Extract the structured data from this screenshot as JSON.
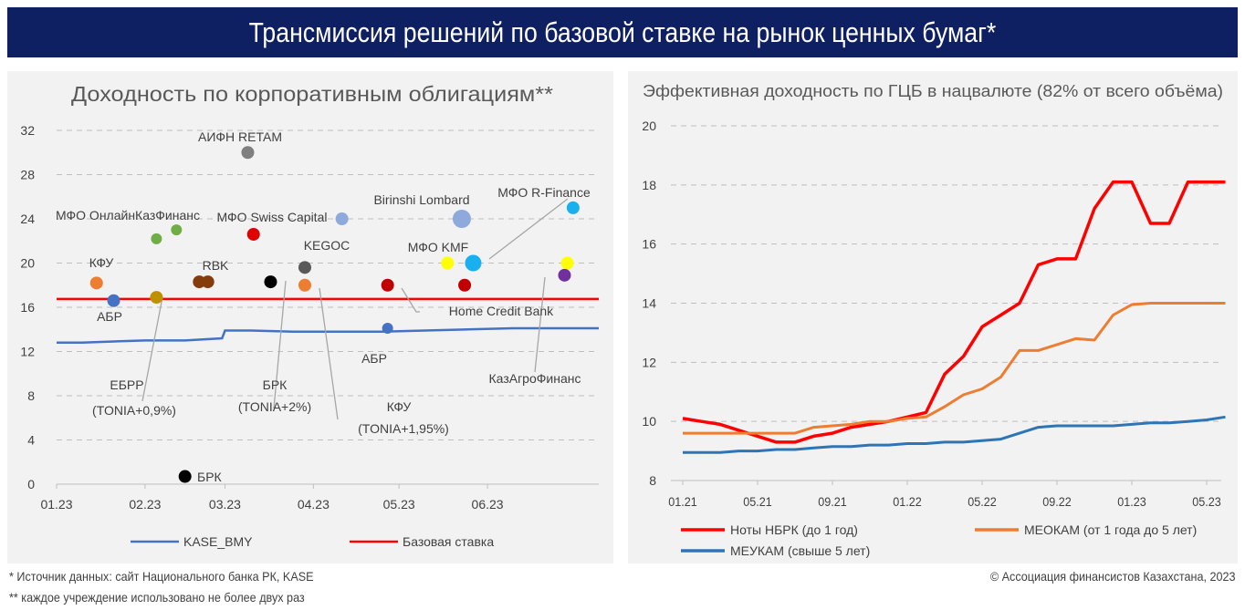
{
  "page_title": "Трансмиссия решений по базовой ставке на рынок ценных бумаг*",
  "footnotes": {
    "source": "* Источник данных: сайт Национального банка РК, KASE",
    "note": "** каждое учреждение использовано не более двух раз",
    "copyright": "© Ассоциация финансистов Казахстана, 2023"
  },
  "colors": {
    "banner": "#0e1f62",
    "panel_bg": "#f2f2f2",
    "red": "#ff0000",
    "blue": "#4472c4",
    "orange": "#ed7d31"
  },
  "chart_data": [
    {
      "type": "scatter",
      "title": "Доходность по корпоративным облигациям**",
      "x_ticks": [
        "01.23",
        "02.23",
        "03.23",
        "04.23",
        "05.23",
        "06.23"
      ],
      "xlim": [
        "2023-01-01",
        "2023-07-10"
      ],
      "ylim": [
        0,
        32
      ],
      "y_ticks": [
        "0",
        "4",
        "8",
        "12",
        "16",
        "20",
        "24",
        "28",
        "32"
      ],
      "grid": true,
      "legend_position": "bottom",
      "lines": [
        {
          "name": "KASE_BMY",
          "color": "#4472c4",
          "points": [
            [
              "2023-01-01",
              12.8
            ],
            [
              "2023-01-10",
              12.8
            ],
            [
              "2023-01-20",
              12.9
            ],
            [
              "2023-02-01",
              13.0
            ],
            [
              "2023-02-15",
              13.0
            ],
            [
              "2023-02-28",
              13.2
            ],
            [
              "2023-03-01",
              13.9
            ],
            [
              "2023-03-10",
              13.9
            ],
            [
              "2023-03-25",
              13.8
            ],
            [
              "2023-04-10",
              13.8
            ],
            [
              "2023-04-25",
              13.8
            ],
            [
              "2023-05-10",
              13.9
            ],
            [
              "2023-05-25",
              14.0
            ],
            [
              "2023-06-10",
              14.1
            ],
            [
              "2023-06-25",
              14.1
            ],
            [
              "2023-07-10",
              14.1
            ]
          ]
        },
        {
          "name": "Базовая ставка",
          "color": "#ff0000",
          "constant": 16.75
        }
      ],
      "points": [
        {
          "label": "АИФН RETAM",
          "date": "2023-03-09",
          "y": 30.0,
          "color": "#7f7f7f",
          "size": 7
        },
        {
          "label": "",
          "date": "2023-02-05",
          "y": 22.2,
          "color": "#70ad47",
          "size": 6
        },
        {
          "label": "",
          "date": "2023-02-12",
          "y": 23.0,
          "color": "#70ad47",
          "size": 6
        },
        {
          "label": "МФО Swiss Capital",
          "date": "2023-03-11",
          "y": 22.6,
          "color": "#e00000",
          "size": 7
        },
        {
          "label": "Birinshi Lombard",
          "date": "2023-04-11",
          "y": 24.0,
          "color": "#8ea9db",
          "size": 7
        },
        {
          "label": "",
          "date": "2023-05-23",
          "y": 24.0,
          "color": "#8ea9db",
          "size": 10
        },
        {
          "label": "",
          "date": "2023-07-01",
          "y": 25.0,
          "color": "#1ab0f0",
          "size": 7
        },
        {
          "label": "",
          "date": "2023-05-27",
          "y": 20.0,
          "color": "#1ab0f0",
          "size": 9
        },
        {
          "label": "",
          "date": "2023-05-18",
          "y": 20.0,
          "color": "#ffff00",
          "size": 7
        },
        {
          "label": "",
          "date": "2023-06-29",
          "y": 20.0,
          "color": "#ffff00",
          "size": 7
        },
        {
          "label": "",
          "date": "2023-05-24",
          "y": 18.0,
          "color": "#c00000",
          "size": 7
        },
        {
          "label": "",
          "date": "2023-04-27",
          "y": 18.0,
          "color": "#c00000",
          "size": 7
        },
        {
          "label": "",
          "date": "2023-06-28",
          "y": 18.9,
          "color": "#7030a0",
          "size": 7
        },
        {
          "label": "KEGOC",
          "date": "2023-03-29",
          "y": 19.6,
          "color": "#595959",
          "size": 7
        },
        {
          "label": "",
          "date": "2023-03-29",
          "y": 18.0,
          "color": "#ed7d31",
          "size": 7
        },
        {
          "label": "",
          "date": "2023-03-17",
          "y": 18.3,
          "color": "#000000",
          "size": 7
        },
        {
          "label": "RBK",
          "date": "2023-02-20",
          "y": 18.3,
          "color": "#843c0c",
          "size": 7
        },
        {
          "label": "",
          "date": "2023-02-23",
          "y": 18.3,
          "color": "#843c0c",
          "size": 7
        },
        {
          "label": "КФУ",
          "date": "2023-01-15",
          "y": 18.2,
          "color": "#ed7d31",
          "size": 7
        },
        {
          "label": "АБР",
          "date": "2023-01-21",
          "y": 16.6,
          "color": "#4472c4",
          "size": 7
        },
        {
          "label": "",
          "date": "2023-04-27",
          "y": 14.1,
          "color": "#4472c4",
          "size": 6
        },
        {
          "label": "",
          "date": "2023-02-05",
          "y": 16.9,
          "color": "#bf9000",
          "size": 7
        },
        {
          "label": "БРК",
          "date": "2023-02-15",
          "y": 0.7,
          "color": "#000000",
          "size": 7
        }
      ],
      "annotations": [
        "МФО ОнлайнКазФинанс",
        "МФО R-Finance",
        "МФО KMF",
        "Home Credit Bank",
        "АБР",
        "ЕБРР",
        "(TONIA+0,9%)",
        "БРК",
        "(TONIA+2%)",
        "КФУ",
        "(TONIA+1,95%)",
        "КазАгроФинанс"
      ]
    },
    {
      "type": "line",
      "title": "Эффективная доходность по ГЦБ в нацвалюте (82% от всего объёма)",
      "x_ticks": [
        "01.21",
        "05.21",
        "09.21",
        "01.22",
        "05.22",
        "09.22",
        "01.23",
        "05.23"
      ],
      "y_ticks": [
        "8",
        "10",
        "12",
        "14",
        "16",
        "18",
        "20"
      ],
      "ylim": [
        8,
        20
      ],
      "grid": true,
      "legend_position": "bottom",
      "x": [
        "01.21",
        "02.21",
        "03.21",
        "04.21",
        "05.21",
        "06.21",
        "07.21",
        "08.21",
        "09.21",
        "10.21",
        "11.21",
        "12.21",
        "01.22",
        "02.22",
        "03.22",
        "04.22",
        "05.22",
        "06.22",
        "07.22",
        "08.22",
        "09.22",
        "10.22",
        "11.22",
        "12.22",
        "01.23",
        "02.23",
        "03.23",
        "04.23",
        "05.23",
        "06.23"
      ],
      "series": [
        {
          "name": "Ноты НБРК (до 1 год)",
          "color": "#ff0000",
          "values": [
            10.1,
            10.0,
            9.9,
            9.7,
            9.5,
            9.3,
            9.3,
            9.5,
            9.6,
            9.8,
            9.9,
            10.0,
            10.15,
            10.3,
            11.6,
            12.2,
            13.2,
            13.6,
            14.0,
            15.3,
            15.5,
            15.5,
            17.2,
            18.1,
            18.1,
            16.7,
            16.7,
            18.1,
            18.1,
            18.1
          ]
        },
        {
          "name": "МЕОКАМ (от 1 года до 5 лет)",
          "color": "#ed7d31",
          "values": [
            9.6,
            9.6,
            9.6,
            9.6,
            9.6,
            9.6,
            9.6,
            9.8,
            9.85,
            9.9,
            10.0,
            10.0,
            10.1,
            10.15,
            10.5,
            10.9,
            11.1,
            11.5,
            12.4,
            12.4,
            12.6,
            12.8,
            12.75,
            13.6,
            13.95,
            14.0,
            14.0,
            14.0,
            14.0,
            14.0
          ]
        },
        {
          "name": "МЕУКАМ (свыше 5 лет)",
          "color": "#2e75b6",
          "values": [
            8.95,
            8.95,
            8.95,
            9.0,
            9.0,
            9.05,
            9.05,
            9.1,
            9.15,
            9.15,
            9.2,
            9.2,
            9.25,
            9.25,
            9.3,
            9.3,
            9.35,
            9.4,
            9.6,
            9.8,
            9.85,
            9.85,
            9.85,
            9.85,
            9.9,
            9.95,
            9.95,
            10.0,
            10.05,
            10.15
          ]
        }
      ]
    }
  ]
}
